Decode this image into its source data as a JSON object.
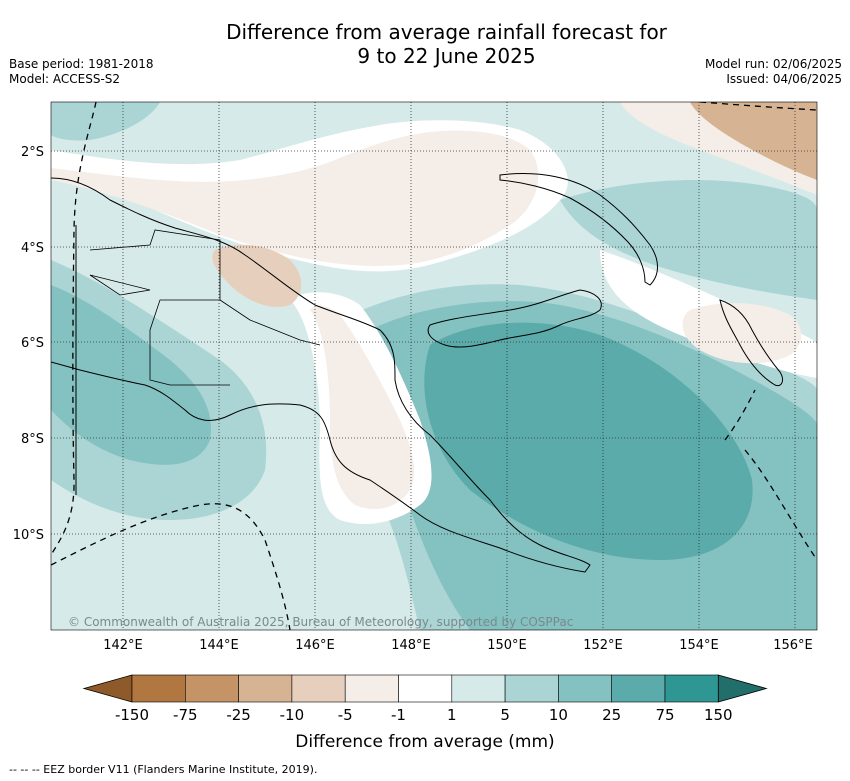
{
  "header": {
    "title_line1": "Difference from average rainfall forecast for",
    "title_line2": "9 to 22 June 2025",
    "base_period": "Base period: 1981-2018",
    "model": "Model: ACCESS-S2",
    "model_run": "Model run: 02/06/2025",
    "issued": "Issued: 04/06/2025"
  },
  "map": {
    "lat_labels": [
      "2°S",
      "4°S",
      "6°S",
      "8°S",
      "10°S"
    ],
    "lon_labels": [
      "142°E",
      "144°E",
      "146°E",
      "148°E",
      "150°E",
      "152°E",
      "154°E",
      "156°E"
    ],
    "copyright": "© Commonwealth of Australia 2025, Bureau of Meteorology, supported by COSPPac"
  },
  "colorbar": {
    "ticks": [
      "-150",
      "-75",
      "-25",
      "-10",
      "-5",
      "-1",
      "1",
      "5",
      "10",
      "25",
      "75",
      "150"
    ],
    "colors": [
      "#8f5a2a",
      "#b07840",
      "#c59466",
      "#d6b392",
      "#e6d0bd",
      "#f4ede8",
      "#ffffff",
      "#d6eae9",
      "#abd5d5",
      "#84c1c1",
      "#5aabaa",
      "#2f9793",
      "#216e6b"
    ],
    "title": "Difference from average (mm)"
  },
  "legend": {
    "eez_line": "--  --  -- EEZ border V11 (Flanders Marine Institute, 2019)."
  }
}
